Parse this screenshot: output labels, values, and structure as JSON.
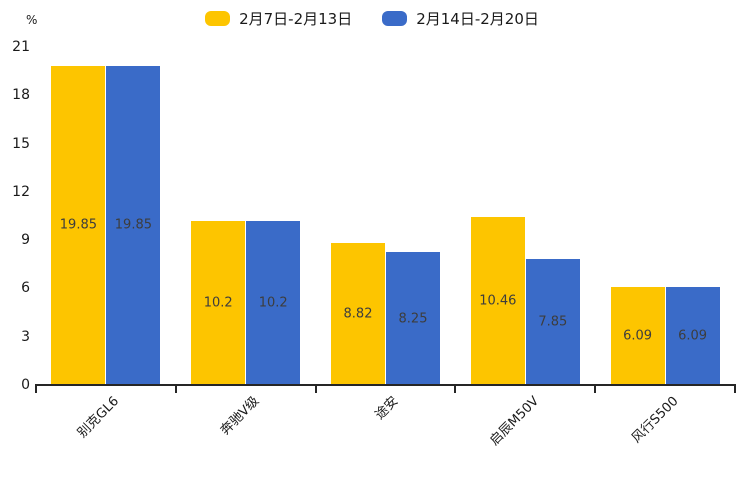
{
  "chart_data": {
    "type": "bar",
    "title": "",
    "unit_label": "%",
    "categories": [
      "别克GL6",
      "奔驰V级",
      "途安",
      "启辰M50V",
      "风行S500"
    ],
    "series": [
      {
        "name": "2月7日-2月13日",
        "color": "#FDC500",
        "values": [
          19.85,
          10.2,
          8.82,
          10.46,
          6.09
        ]
      },
      {
        "name": "2月14日-2月20日",
        "color": "#3A6BC8",
        "values": [
          19.85,
          10.2,
          8.25,
          7.85,
          6.09
        ]
      }
    ],
    "ylim": [
      0,
      21
    ],
    "yticks": [
      0,
      3,
      6,
      9,
      12,
      15,
      18,
      21
    ],
    "legend_position": "top-center",
    "grid": false,
    "value_label_position": "inside-center",
    "axis_color": "#262626"
  }
}
